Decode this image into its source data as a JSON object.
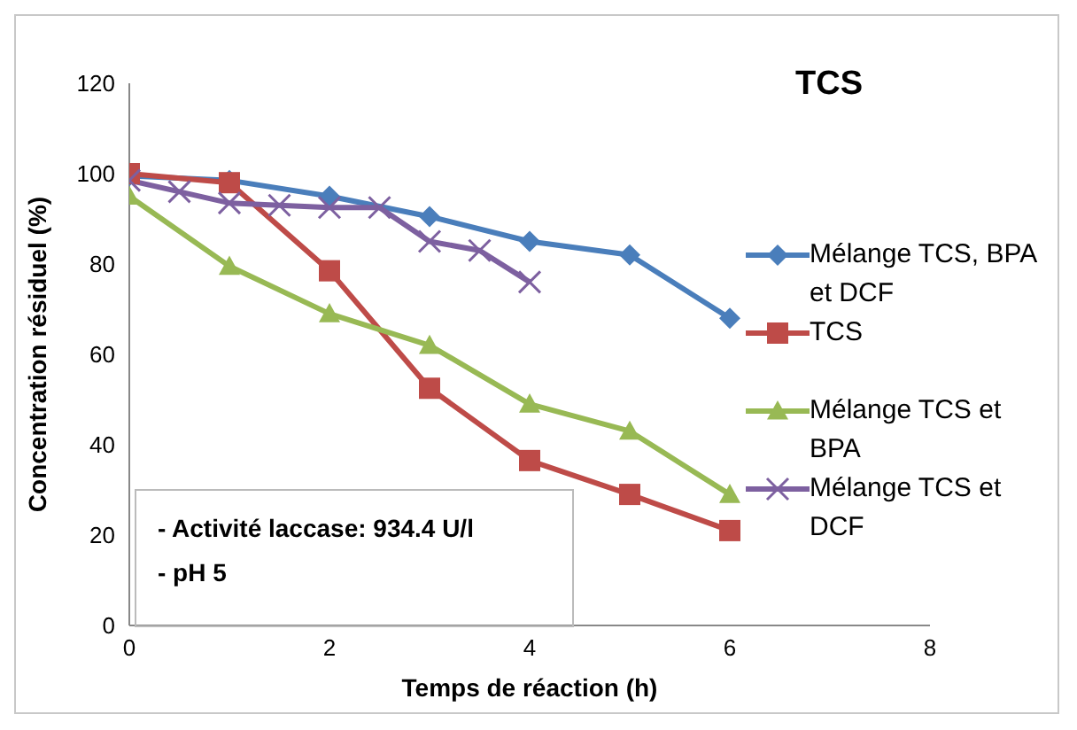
{
  "chart_data": {
    "type": "line",
    "title": "TCS",
    "xlabel": "Temps de réaction (h)",
    "ylabel": "Concentration résiduel (%)",
    "xlim": [
      0,
      8
    ],
    "xticks": [
      0,
      2,
      4,
      6,
      8
    ],
    "ylim": [
      0,
      120
    ],
    "yticks": [
      0,
      20,
      40,
      60,
      80,
      100,
      120
    ],
    "grid": false,
    "legend": "right",
    "line_style": "solid",
    "annotations": [
      "- Activité laccase: 934.4 U/l",
      "- pH 5"
    ],
    "series": [
      {
        "name": "Mélange TCS, BPA et DCF",
        "color": "#4a7ebb",
        "marker": "diamond",
        "x": [
          0,
          1,
          2,
          3,
          4,
          5,
          6
        ],
        "values": [
          99.5,
          98.5,
          95,
          90.5,
          85,
          82,
          68
        ]
      },
      {
        "name": "TCS",
        "color": "#be4b48",
        "marker": "square",
        "x": [
          0,
          1,
          2,
          3,
          4,
          5,
          6
        ],
        "values": [
          100,
          98,
          78.5,
          52.5,
          36.5,
          29,
          21
        ]
      },
      {
        "name": "Mélange TCS et BPA",
        "color": "#98b954",
        "marker": "triangle",
        "x": [
          0,
          1,
          2,
          3,
          4,
          5,
          6
        ],
        "values": [
          95,
          79.5,
          69,
          62,
          49,
          43,
          29
        ]
      },
      {
        "name": "Mélange TCS et DCF",
        "color": "#7d60a0",
        "marker": "cross",
        "x": [
          0,
          0.5,
          1,
          1.5,
          2,
          2.5,
          3,
          3.5,
          4
        ],
        "values": [
          98.5,
          96,
          93.5,
          93,
          92.5,
          92.5,
          85,
          83,
          76
        ]
      }
    ]
  }
}
